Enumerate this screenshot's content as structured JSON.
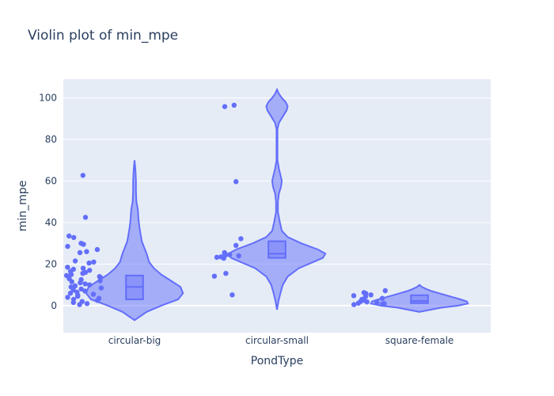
{
  "chart_data": {
    "type": "violin",
    "title": "Violin plot of min_mpe",
    "xlabel": "PondType",
    "ylabel": "min_mpe",
    "categories": [
      "circular-big",
      "circular-small",
      "square-female"
    ],
    "ylim": [
      -13,
      109
    ],
    "yticks": [
      0,
      20,
      40,
      60,
      80,
      100
    ],
    "grid": true,
    "colors": {
      "accent": "#636efa",
      "plot_bg": "#e5ecf6",
      "grid": "#ffffff",
      "text": "#2a3f5f"
    },
    "series": [
      {
        "category": "circular-big",
        "points": [
          62.7,
          42.5,
          33.5,
          32.8,
          30,
          29.5,
          28.5,
          27,
          26,
          25.5,
          21.5,
          21,
          20.5,
          18.5,
          18,
          17.5,
          17,
          16.5,
          16,
          15.5,
          15,
          14.5,
          14,
          13.5,
          13,
          12.5,
          12,
          11.5,
          11,
          10.5,
          10,
          9.5,
          9,
          8.5,
          8,
          7.5,
          7,
          6.5,
          6,
          5.5,
          5,
          4.5,
          4,
          3.5,
          3,
          2.5,
          2,
          1.5,
          1,
          0.5
        ],
        "box": {
          "q1": 3,
          "median": 9,
          "q3": 14.5
        },
        "density": [
          [
            -7,
            0
          ],
          [
            -3,
            0.25
          ],
          [
            0,
            0.55
          ],
          [
            3,
            0.9
          ],
          [
            6,
            1
          ],
          [
            9,
            0.95
          ],
          [
            12,
            0.75
          ],
          [
            15,
            0.55
          ],
          [
            18,
            0.4
          ],
          [
            21,
            0.3
          ],
          [
            25,
            0.25
          ],
          [
            28,
            0.2
          ],
          [
            31,
            0.15
          ],
          [
            35,
            0.12
          ],
          [
            38,
            0.1
          ],
          [
            42,
            0.08
          ],
          [
            46,
            0.07
          ],
          [
            50,
            0.04
          ],
          [
            55,
            0.03
          ],
          [
            60,
            0.03
          ],
          [
            65,
            0.02
          ],
          [
            70,
            0
          ]
        ]
      },
      {
        "category": "circular-small",
        "points": [
          96.5,
          95.8,
          59.7,
          32.2,
          29,
          25.5,
          25,
          24.5,
          24.3,
          24,
          23.5,
          23.3,
          22.8,
          15.5,
          14.2,
          5.2
        ],
        "box": {
          "q1": 23,
          "median": 25,
          "q3": 31
        },
        "density": [
          [
            -2,
            0
          ],
          [
            2,
            0.03
          ],
          [
            6,
            0.07
          ],
          [
            10,
            0.12
          ],
          [
            14,
            0.22
          ],
          [
            18,
            0.45
          ],
          [
            21,
            0.75
          ],
          [
            23,
            0.95
          ],
          [
            25,
            1
          ],
          [
            27,
            0.85
          ],
          [
            30,
            0.5
          ],
          [
            33,
            0.22
          ],
          [
            36,
            0.1
          ],
          [
            40,
            0.06
          ],
          [
            45,
            0.02
          ],
          [
            50,
            0.02
          ],
          [
            54,
            0.04
          ],
          [
            57,
            0.08
          ],
          [
            60,
            0.1
          ],
          [
            63,
            0.07
          ],
          [
            66,
            0.04
          ],
          [
            70,
            0.01
          ],
          [
            75,
            0.01
          ],
          [
            80,
            0.01
          ],
          [
            85,
            0.01
          ],
          [
            88,
            0.04
          ],
          [
            91,
            0.12
          ],
          [
            94,
            0.2
          ],
          [
            96,
            0.22
          ],
          [
            98,
            0.18
          ],
          [
            100,
            0.1
          ],
          [
            102,
            0.04
          ],
          [
            104,
            0
          ]
        ]
      },
      {
        "category": "square-female",
        "points": [
          7.2,
          6.3,
          5.8,
          5.2,
          4.8,
          4.3,
          3.5,
          3,
          2.5,
          2,
          1.8,
          1.5,
          1.2,
          1,
          0.8,
          0.5
        ],
        "box": {
          "q1": 1.2,
          "median": 2.2,
          "q3": 5
        },
        "density": [
          [
            -3,
            0
          ],
          [
            -1,
            0.45
          ],
          [
            0,
            0.8
          ],
          [
            1,
            1
          ],
          [
            2,
            0.98
          ],
          [
            3,
            0.85
          ],
          [
            4,
            0.7
          ],
          [
            5,
            0.55
          ],
          [
            6,
            0.4
          ],
          [
            7,
            0.25
          ],
          [
            8,
            0.14
          ],
          [
            9,
            0.05
          ],
          [
            10,
            0
          ]
        ]
      }
    ]
  }
}
